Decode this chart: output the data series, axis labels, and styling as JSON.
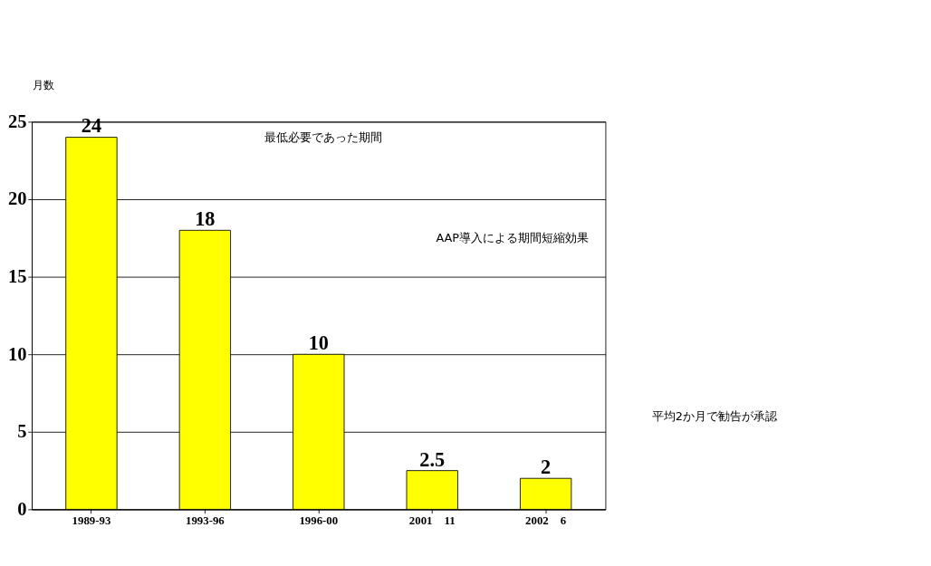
{
  "chart_data": {
    "type": "bar",
    "ylabel": "月数",
    "categories": [
      "1989-93",
      "1993-96",
      "1996-00",
      "2001　11",
      "2002　6"
    ],
    "values": [
      24,
      18,
      10,
      2.5,
      2
    ],
    "color": "#ffff00",
    "ylim": [
      0,
      25
    ],
    "yticks": [
      0,
      5,
      10,
      15,
      20,
      25
    ],
    "grid": "y",
    "data_labels": true,
    "annotations": [
      "最低必要であった期間",
      "AAP導入による期間短縮効果",
      "平均2か月で勧告が承認"
    ]
  }
}
